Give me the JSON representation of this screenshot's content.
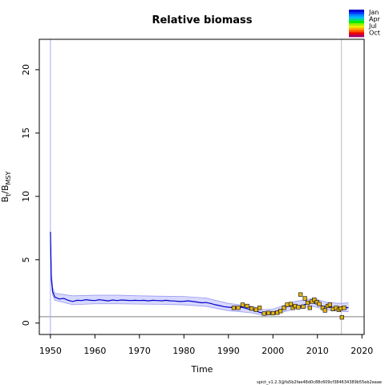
{
  "chart_data": {
    "type": "line",
    "title": "Relative biomass",
    "xlabel": "Time",
    "ylabel": {
      "base": "B",
      "sub1": "t",
      "sep": "/B",
      "sub2": "MSY"
    },
    "xlim": [
      1947.5,
      2020.5
    ],
    "ylim": [
      -0.9,
      22.4
    ],
    "xticks": [
      "1950",
      "1960",
      "1970",
      "1980",
      "1990",
      "2000",
      "2010",
      "2020"
    ],
    "yticks": [
      "0",
      "5",
      "10",
      "15",
      "20"
    ],
    "xtick_values": [
      1950,
      1960,
      1970,
      1980,
      1990,
      2000,
      2010,
      2020
    ],
    "ytick_values": [
      0,
      5,
      10,
      15,
      20
    ],
    "reference_lines": {
      "horizontal_y": 0.5,
      "vertical_x": [
        1950,
        2015.4
      ]
    },
    "colors": {
      "line": "#0000cc",
      "band": "#c8c8ff",
      "band_edge": "#9a9af0",
      "marker": "#e3b617",
      "ref": "#808080"
    },
    "series": [
      {
        "values": [
          [
            1950.0,
            7.2
          ],
          [
            1950.2,
            3.6
          ],
          [
            1950.5,
            2.5
          ],
          [
            1951.0,
            2.05
          ],
          [
            1952.0,
            1.9
          ],
          [
            1953.0,
            1.95
          ],
          [
            1954.0,
            1.8
          ],
          [
            1955.0,
            1.7
          ],
          [
            1956.0,
            1.8
          ],
          [
            1957.0,
            1.78
          ],
          [
            1958.0,
            1.85
          ],
          [
            1959.0,
            1.8
          ],
          [
            1960.0,
            1.78
          ],
          [
            1961.0,
            1.85
          ],
          [
            1962.0,
            1.8
          ],
          [
            1963.0,
            1.75
          ],
          [
            1964.0,
            1.82
          ],
          [
            1965.0,
            1.78
          ],
          [
            1966.0,
            1.82
          ],
          [
            1967.0,
            1.8
          ],
          [
            1968.0,
            1.78
          ],
          [
            1969.0,
            1.8
          ],
          [
            1970.0,
            1.78
          ],
          [
            1971.0,
            1.8
          ],
          [
            1972.0,
            1.75
          ],
          [
            1973.0,
            1.8
          ],
          [
            1974.0,
            1.78
          ],
          [
            1975.0,
            1.76
          ],
          [
            1976.0,
            1.8
          ],
          [
            1977.0,
            1.75
          ],
          [
            1978.0,
            1.74
          ],
          [
            1979.0,
            1.7
          ],
          [
            1980.0,
            1.72
          ],
          [
            1981.0,
            1.75
          ],
          [
            1982.0,
            1.7
          ],
          [
            1983.0,
            1.66
          ],
          [
            1984.0,
            1.6
          ],
          [
            1985.0,
            1.62
          ],
          [
            1986.0,
            1.55
          ],
          [
            1987.0,
            1.45
          ],
          [
            1988.0,
            1.38
          ],
          [
            1989.0,
            1.3
          ],
          [
            1990.0,
            1.25
          ],
          [
            1991.0,
            1.22
          ],
          [
            1992.0,
            1.2
          ],
          [
            1993.0,
            1.25
          ],
          [
            1994.0,
            1.15
          ],
          [
            1995.0,
            1.05
          ],
          [
            1996.0,
            1.0
          ],
          [
            1997.0,
            0.85
          ],
          [
            1998.0,
            0.78
          ],
          [
            1999.0,
            0.78
          ],
          [
            2000.0,
            0.85
          ],
          [
            2001.0,
            0.95
          ],
          [
            2002.0,
            1.1
          ],
          [
            2003.0,
            1.3
          ],
          [
            2004.0,
            1.35
          ],
          [
            2005.0,
            1.38
          ],
          [
            2006.0,
            1.3
          ],
          [
            2007.0,
            1.45
          ],
          [
            2008.0,
            1.55
          ],
          [
            2009.0,
            1.6
          ],
          [
            2010.0,
            1.5
          ],
          [
            2011.0,
            1.35
          ],
          [
            2012.0,
            1.3
          ],
          [
            2013.0,
            1.25
          ],
          [
            2014.0,
            1.2
          ],
          [
            2015.0,
            1.18
          ],
          [
            2016.0,
            1.2
          ],
          [
            2017.0,
            1.22
          ]
        ]
      }
    ],
    "band": {
      "lower": [
        [
          1950.0,
          7.2
        ],
        [
          1950.2,
          3.3
        ],
        [
          1950.5,
          2.2
        ],
        [
          1951.0,
          1.8
        ],
        [
          1955.0,
          1.45
        ],
        [
          1960.0,
          1.52
        ],
        [
          1965.0,
          1.52
        ],
        [
          1970.0,
          1.5
        ],
        [
          1975.0,
          1.48
        ],
        [
          1980.0,
          1.44
        ],
        [
          1985.0,
          1.32
        ],
        [
          1990.0,
          0.98
        ],
        [
          1995.0,
          0.82
        ],
        [
          1998.0,
          0.6
        ],
        [
          2000.0,
          0.66
        ],
        [
          2005.0,
          1.12
        ],
        [
          2009.0,
          1.32
        ],
        [
          2012.0,
          1.05
        ],
        [
          2015.0,
          0.92
        ],
        [
          2017.0,
          0.9
        ]
      ],
      "upper": [
        [
          1950.0,
          7.2
        ],
        [
          1950.2,
          3.9
        ],
        [
          1950.5,
          2.8
        ],
        [
          1951.0,
          2.35
        ],
        [
          1955.0,
          2.15
        ],
        [
          1960.0,
          2.2
        ],
        [
          1965.0,
          2.2
        ],
        [
          1970.0,
          2.15
        ],
        [
          1975.0,
          2.12
        ],
        [
          1980.0,
          2.1
        ],
        [
          1985.0,
          1.98
        ],
        [
          1990.0,
          1.55
        ],
        [
          1995.0,
          1.35
        ],
        [
          1998.0,
          1.05
        ],
        [
          2000.0,
          1.1
        ],
        [
          2005.0,
          1.7
        ],
        [
          2009.0,
          1.95
        ],
        [
          2012.0,
          1.65
        ],
        [
          2015.0,
          1.55
        ],
        [
          2017.0,
          1.6
        ]
      ]
    },
    "observations": [
      [
        1991.2,
        1.2
      ],
      [
        1992.2,
        1.2
      ],
      [
        1993.2,
        1.45
      ],
      [
        1994.2,
        1.35
      ],
      [
        1995.2,
        1.15
      ],
      [
        1996.2,
        1.05
      ],
      [
        1997.0,
        1.2
      ],
      [
        1998.0,
        0.75
      ],
      [
        1999.0,
        0.8
      ],
      [
        2000.0,
        0.78
      ],
      [
        2001.0,
        0.82
      ],
      [
        2001.7,
        0.95
      ],
      [
        2002.5,
        1.2
      ],
      [
        2003.2,
        1.45
      ],
      [
        2004.0,
        1.5
      ],
      [
        2004.5,
        1.2
      ],
      [
        2005.0,
        1.35
      ],
      [
        2005.7,
        1.25
      ],
      [
        2006.2,
        2.25
      ],
      [
        2006.8,
        1.3
      ],
      [
        2007.2,
        1.95
      ],
      [
        2007.8,
        1.6
      ],
      [
        2008.3,
        1.2
      ],
      [
        2008.8,
        1.7
      ],
      [
        2009.3,
        1.85
      ],
      [
        2009.9,
        1.65
      ],
      [
        2010.4,
        1.5
      ],
      [
        2011.2,
        1.2
      ],
      [
        2011.7,
        1.0
      ],
      [
        2012.3,
        1.35
      ],
      [
        2012.8,
        1.45
      ],
      [
        2013.5,
        1.1
      ],
      [
        2014.2,
        1.2
      ],
      [
        2014.8,
        1.05
      ],
      [
        2015.2,
        1.15
      ],
      [
        2015.5,
        0.45
      ],
      [
        2016.0,
        1.2
      ]
    ],
    "legend": {
      "placement": "top-right",
      "labels": [
        "Jan",
        "Apr",
        "Jul",
        "Oct"
      ],
      "colors": [
        "#0000cc",
        "#0033ff",
        "#0088ff",
        "#00bbff",
        "#00dd77",
        "#00ee00",
        "#99ee00",
        "#eeee00",
        "#ffaa00",
        "#ff5500",
        "#ee0000",
        "#aa0066"
      ]
    },
    "footnote": "spict_v1.2.3@fa5b2fae48d0c88c609cf384634389b55eb2eaae"
  }
}
